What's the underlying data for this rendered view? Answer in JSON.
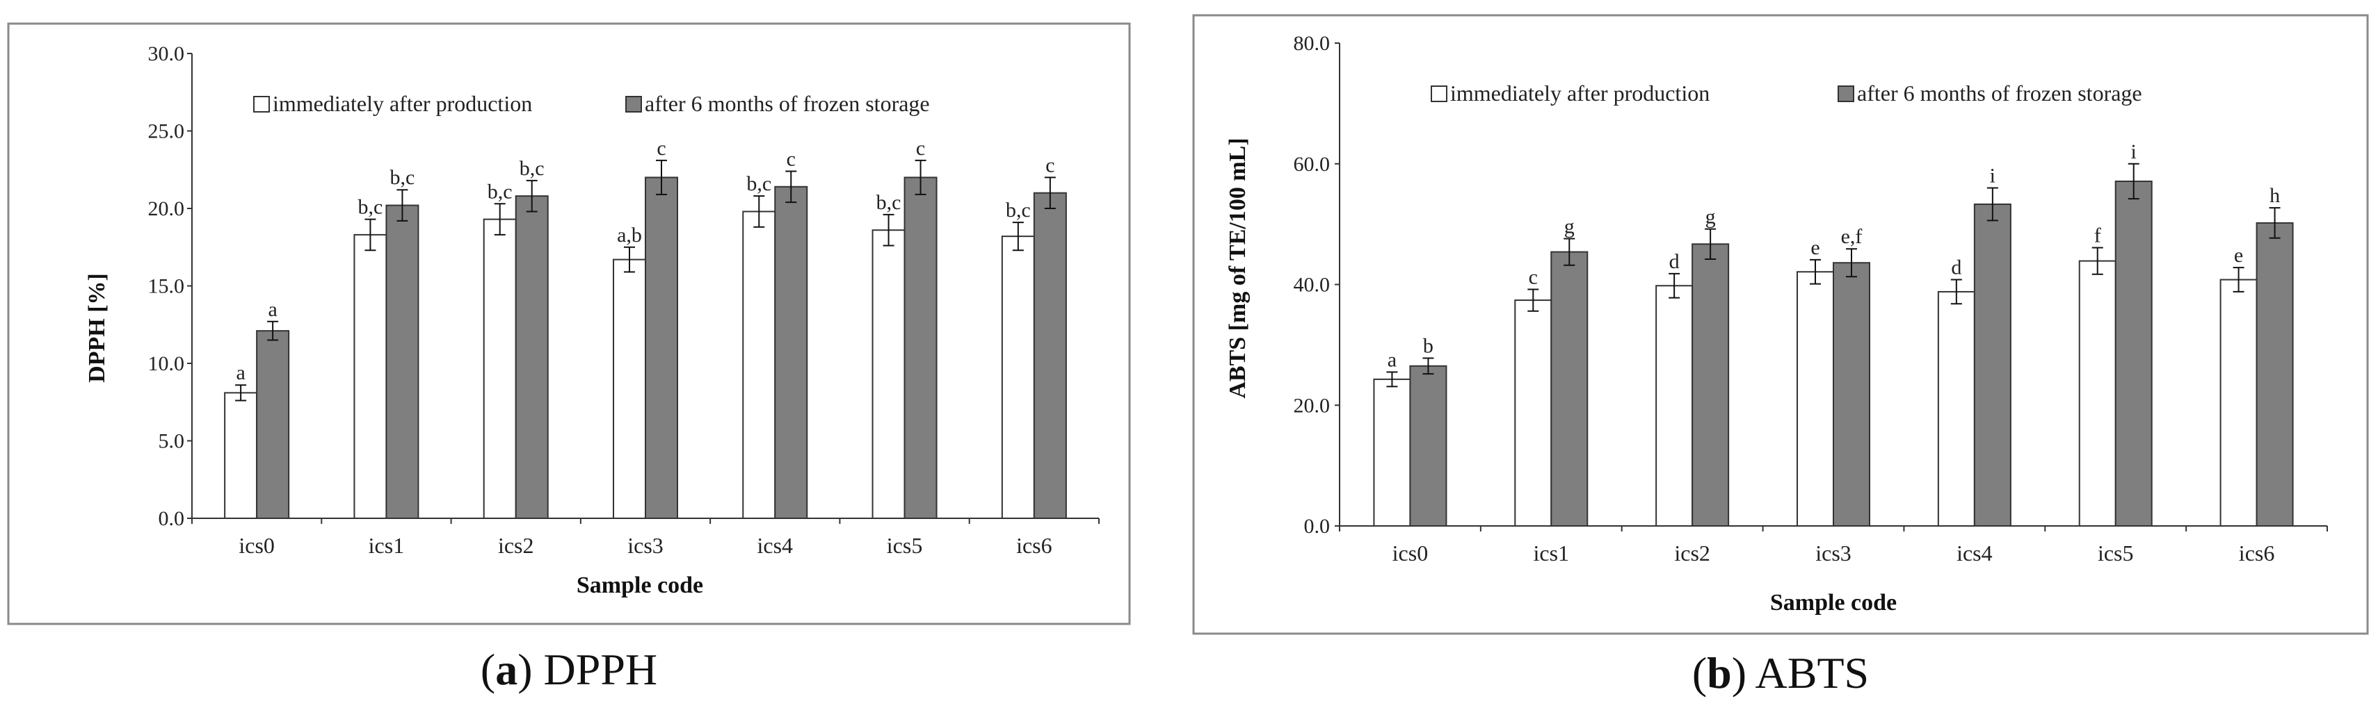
{
  "chart_data": [
    {
      "type": "bar",
      "panel": "a",
      "caption_letter": "a",
      "caption_text": "DPPH",
      "title": "",
      "xlabel": "Sample code",
      "ylabel": "DPPH [%]",
      "ylim": [
        0,
        30
      ],
      "yticks": [
        "0.0",
        "5.0",
        "10.0",
        "15.0",
        "20.0",
        "25.0",
        "30.0"
      ],
      "ytick_values": [
        0,
        5,
        10,
        15,
        20,
        25,
        30
      ],
      "grid": false,
      "legend_position": "top",
      "categories": [
        "ics0",
        "ics1",
        "ics2",
        "ics3",
        "ics4",
        "ics5",
        "ics6"
      ],
      "series": [
        {
          "name": "immediately after production",
          "color": "#ffffff",
          "values": [
            8.1,
            18.3,
            19.3,
            16.7,
            19.8,
            18.6,
            18.2
          ],
          "errors": [
            0.5,
            1.0,
            1.0,
            0.8,
            1.0,
            1.0,
            0.9
          ],
          "labels": [
            "a",
            "b,c",
            "b,c",
            "a,b",
            "b,c",
            "b,c",
            "b,c"
          ]
        },
        {
          "name": "after 6 months of frozen storage",
          "color": "#7f7f7f",
          "values": [
            12.1,
            20.2,
            20.8,
            22.0,
            21.4,
            22.0,
            21.0
          ],
          "errors": [
            0.6,
            1.0,
            1.0,
            1.1,
            1.0,
            1.1,
            1.0
          ],
          "labels": [
            "a",
            "b,c",
            "b,c",
            "c",
            "c",
            "c",
            "c"
          ]
        }
      ]
    },
    {
      "type": "bar",
      "panel": "b",
      "caption_letter": "b",
      "caption_text": "ABTS",
      "title": "",
      "xlabel": "Sample code",
      "ylabel": "ABTS [mg of TE/100 mL]",
      "ylim": [
        0,
        80
      ],
      "yticks": [
        "0.0",
        "20.0",
        "40.0",
        "60.0",
        "80.0"
      ],
      "ytick_values": [
        0,
        20,
        40,
        60,
        80
      ],
      "grid": false,
      "legend_position": "top",
      "categories": [
        "ics0",
        "ics1",
        "ics2",
        "ics3",
        "ics4",
        "ics5",
        "ics6"
      ],
      "series": [
        {
          "name": "immediately after production",
          "color": "#ffffff",
          "values": [
            24.3,
            37.4,
            39.8,
            42.1,
            38.8,
            43.9,
            40.8
          ],
          "errors": [
            1.2,
            1.8,
            2.0,
            2.0,
            2.0,
            2.2,
            2.0
          ],
          "labels": [
            "a",
            "c",
            "d",
            "e",
            "d",
            "f",
            "e"
          ]
        },
        {
          "name": "after 6 months of frozen storage",
          "color": "#7f7f7f",
          "values": [
            26.5,
            45.4,
            46.7,
            43.6,
            53.3,
            57.1,
            50.2
          ],
          "errors": [
            1.3,
            2.2,
            2.5,
            2.3,
            2.7,
            2.9,
            2.5
          ],
          "labels": [
            "b",
            "g",
            "g",
            "e,f",
            "i",
            "i",
            "h"
          ]
        }
      ]
    }
  ]
}
